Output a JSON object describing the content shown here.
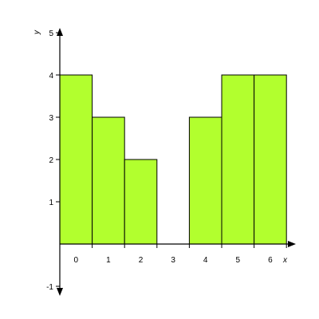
{
  "chart_data": {
    "type": "bar",
    "categories": [
      "0",
      "1",
      "2",
      "3",
      "4",
      "5",
      "6"
    ],
    "values": [
      4,
      3,
      2,
      0,
      3,
      4,
      4
    ],
    "xlabel": "x",
    "ylabel": "y",
    "ylim": [
      -1,
      5
    ],
    "y_ticks": [
      "-1",
      "1",
      "2",
      "3",
      "4",
      "5"
    ],
    "grid": false,
    "legend": "none",
    "colors": {
      "bar_fill": "#B2FF2E",
      "bar_stroke": "#000000",
      "axis": "#000000"
    }
  }
}
